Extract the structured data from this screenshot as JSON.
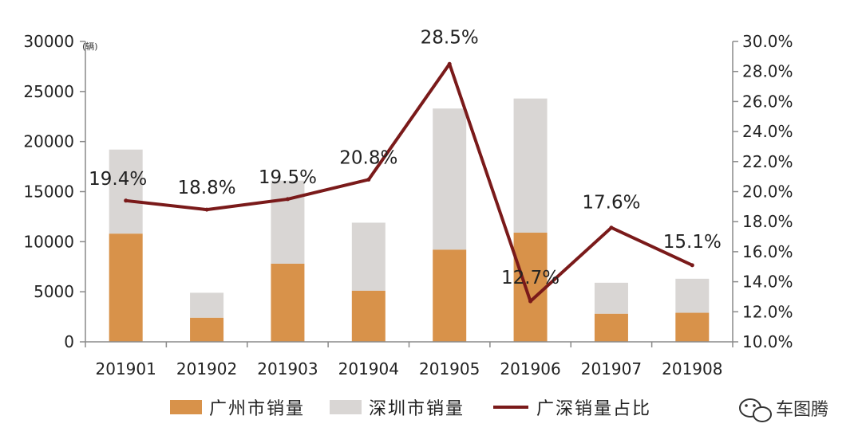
{
  "chart_data": {
    "type": "bar",
    "stacked": true,
    "categories": [
      "201901",
      "201902",
      "201903",
      "201904",
      "201905",
      "201906",
      "201907",
      "201908"
    ],
    "series": [
      {
        "name": "广州市销量",
        "axis": "left",
        "color": "#d8924a",
        "values": [
          10800,
          2400,
          7800,
          5100,
          9200,
          10900,
          2800,
          2900
        ]
      },
      {
        "name": "深圳市销量",
        "axis": "left",
        "color": "#d9d6d4",
        "values": [
          8400,
          2500,
          8300,
          6800,
          14100,
          13400,
          3100,
          3400
        ]
      },
      {
        "name": "广深销量占比",
        "type": "line",
        "axis": "right",
        "color": "#7a1a1a",
        "values": [
          19.4,
          18.8,
          19.5,
          20.8,
          28.5,
          12.7,
          17.6,
          15.1
        ]
      }
    ],
    "data_labels": [
      "19.4%",
      "18.8%",
      "19.5%",
      "20.8%",
      "28.5%",
      "12.7%",
      "17.6%",
      "15.1%"
    ],
    "y_left": {
      "unit": "(辆)",
      "ylim": [
        0,
        30000
      ],
      "ticks": [
        "0",
        "5000",
        "10000",
        "15000",
        "20000",
        "25000",
        "30000"
      ]
    },
    "y_right": {
      "ylim": [
        10.0,
        30.0
      ],
      "ticks": [
        "10.0%",
        "12.0%",
        "14.0%",
        "16.0%",
        "18.0%",
        "20.0%",
        "22.0%",
        "24.0%",
        "26.0%",
        "28.0%",
        "30.0%"
      ]
    },
    "grid": false,
    "legend_position": "bottom"
  },
  "watermark": {
    "icon": "wechat-icon",
    "text": "车图腾"
  }
}
